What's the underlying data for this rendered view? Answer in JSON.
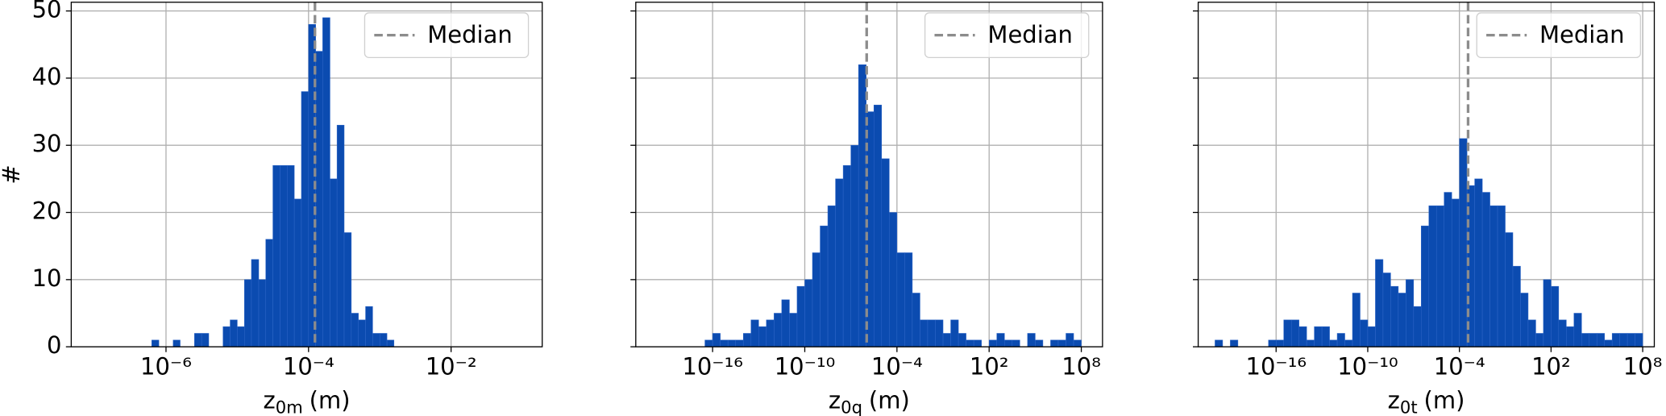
{
  "chart_data": [
    {
      "type": "histogram",
      "ylabel": "#",
      "xlabel": "z",
      "xlabel_sub": "0m",
      "xlabel_unit": "(m)",
      "bins": [
        6.31e-07,
        7.94e-07,
        1e-06,
        1.26e-06,
        1.58e-06,
        2e-06,
        2.51e-06,
        3.16e-06,
        3.98e-06,
        5.01e-06,
        6.31e-06,
        7.94e-06,
        1e-05,
        1.26e-05,
        1.58e-05,
        2e-05,
        2.51e-05,
        3.16e-05,
        3.98e-05,
        5.01e-05,
        6.31e-05,
        7.94e-05,
        0.0001,
        0.000126,
        0.000158,
        0.0002,
        0.000251,
        0.000316,
        0.000398,
        0.000501,
        0.000631,
        0.000794,
        0.001,
        0.00126,
        0.00158
      ],
      "counts": [
        1,
        0,
        0,
        1,
        0,
        0,
        2,
        2,
        0,
        0,
        3,
        4,
        3,
        10,
        13,
        10,
        16,
        27,
        27,
        27,
        22,
        38,
        48,
        44,
        49,
        25,
        33,
        17,
        5,
        4,
        6,
        2,
        2,
        1
      ],
      "color": "#0b4bb0",
      "log_x": true,
      "grid": true,
      "legend": "upper right",
      "median": {
        "name": "Median",
        "value": 0.000123,
        "color": "#8c8c8c"
      },
      "xlim": [
        4.68e-08,
        0.19
      ],
      "xticks": [
        {
          "value": 1e-06,
          "label": "10⁻⁶"
        },
        {
          "value": 0.0001,
          "label": "10⁻⁴"
        },
        {
          "value": 0.01,
          "label": "10⁻²"
        }
      ],
      "ylim": [
        0,
        51.3
      ],
      "yticks": [
        0,
        10,
        20,
        30,
        40,
        50
      ]
    },
    {
      "type": "histogram",
      "xlabel": "z",
      "xlabel_sub": "0q",
      "xlabel_unit": "(m)",
      "bins": [
        3.16e-17,
        1e-16,
        3.16e-16,
        1e-15,
        3.16e-15,
        1e-14,
        3.16e-14,
        1e-13,
        3.16e-13,
        1e-12,
        3.16e-12,
        1e-11,
        3.16e-11,
        1e-10,
        3.16e-10,
        1e-09,
        3.16e-09,
        1e-08,
        3.16e-08,
        1e-07,
        3.16e-07,
        1e-06,
        3.16e-06,
        1e-05,
        3.16e-05,
        0.0001,
        0.000316,
        0.001,
        0.00316,
        0.01,
        0.0316,
        0.1,
        0.316,
        1,
        3.16,
        10,
        31.6,
        100,
        316,
        1000.0,
        3160.0,
        10000.0,
        31600.0,
        100000.0,
        316000.0,
        1000000.0,
        3160000.0,
        10000000.0,
        31600000.0,
        100000000.0
      ],
      "counts": [
        1,
        2,
        1,
        1,
        1,
        2,
        4,
        3,
        4,
        5,
        7,
        5,
        9,
        10,
        14,
        18,
        21,
        25,
        27,
        30,
        42,
        35,
        36,
        28,
        20,
        14,
        14,
        8,
        4,
        4,
        4,
        2,
        4,
        2,
        1,
        1,
        0,
        1,
        2,
        1,
        1,
        0,
        2,
        1,
        0,
        1,
        1,
        2,
        1
      ],
      "color": "#0b4bb0",
      "log_x": true,
      "grid": true,
      "legend": "upper right",
      "median": {
        "name": "Median",
        "value": 1.07e-06,
        "color": "#8c8c8c"
      },
      "xlim": [
        1e-21,
        2400000000.0
      ],
      "xticks": [
        {
          "value": 1e-16,
          "label": "10⁻¹⁶"
        },
        {
          "value": 1e-10,
          "label": "10⁻¹⁰"
        },
        {
          "value": 0.0001,
          "label": "10⁻⁴"
        },
        {
          "value": 100,
          "label": "10²"
        },
        {
          "value": 100000000.0,
          "label": "10⁸"
        }
      ]
    },
    {
      "type": "histogram",
      "xlabel": "z",
      "xlabel_sub": "0t",
      "xlabel_unit": "(m)",
      "bins": [
        1e-20,
        3.16e-20,
        1e-19,
        3.16e-19,
        1e-18,
        3.16e-18,
        1e-17,
        3.16e-17,
        1e-16,
        3.16e-16,
        1e-15,
        3.16e-15,
        1e-14,
        3.16e-14,
        1e-13,
        3.16e-13,
        1e-12,
        3.16e-12,
        1e-11,
        3.16e-11,
        1e-10,
        3.16e-10,
        1e-09,
        3.16e-09,
        1e-08,
        3.16e-08,
        1e-07,
        3.16e-07,
        1e-06,
        3.16e-06,
        1e-05,
        3.16e-05,
        0.0001,
        0.000316,
        0.001,
        0.00316,
        0.01,
        0.0316,
        0.1,
        0.316,
        1,
        3.16,
        10,
        31.6,
        100,
        316,
        1000.0,
        3160.0,
        10000.0,
        31600.0,
        100000.0,
        316000.0,
        1000000.0,
        3160000.0,
        10000000.0,
        31600000.0,
        100000000.0
      ],
      "counts": [
        1,
        0,
        1,
        0,
        0,
        0,
        0,
        1,
        1,
        4,
        4,
        3,
        1,
        3,
        3,
        1,
        2,
        1,
        8,
        4,
        3,
        13,
        11,
        9,
        8,
        10,
        6,
        18,
        21,
        21,
        23,
        22,
        31,
        24,
        25,
        23,
        21,
        21,
        17,
        12,
        8,
        4,
        2,
        10,
        9,
        4,
        3,
        5,
        2,
        2,
        2,
        1,
        2,
        2,
        2,
        2
      ],
      "color": "#0b4bb0",
      "log_x": true,
      "grid": true,
      "legend": "upper right",
      "median": {
        "name": "Median",
        "value": 0.00037,
        "color": "#8c8c8c"
      },
      "xlim": [
        7.94e-22,
        575000000.0
      ],
      "xticks": [
        {
          "value": 1e-16,
          "label": "10⁻¹⁶"
        },
        {
          "value": 1e-10,
          "label": "10⁻¹⁰"
        },
        {
          "value": 0.0001,
          "label": "10⁻⁴"
        },
        {
          "value": 100,
          "label": "10²"
        },
        {
          "value": 100000000.0,
          "label": "10⁸"
        }
      ]
    }
  ]
}
